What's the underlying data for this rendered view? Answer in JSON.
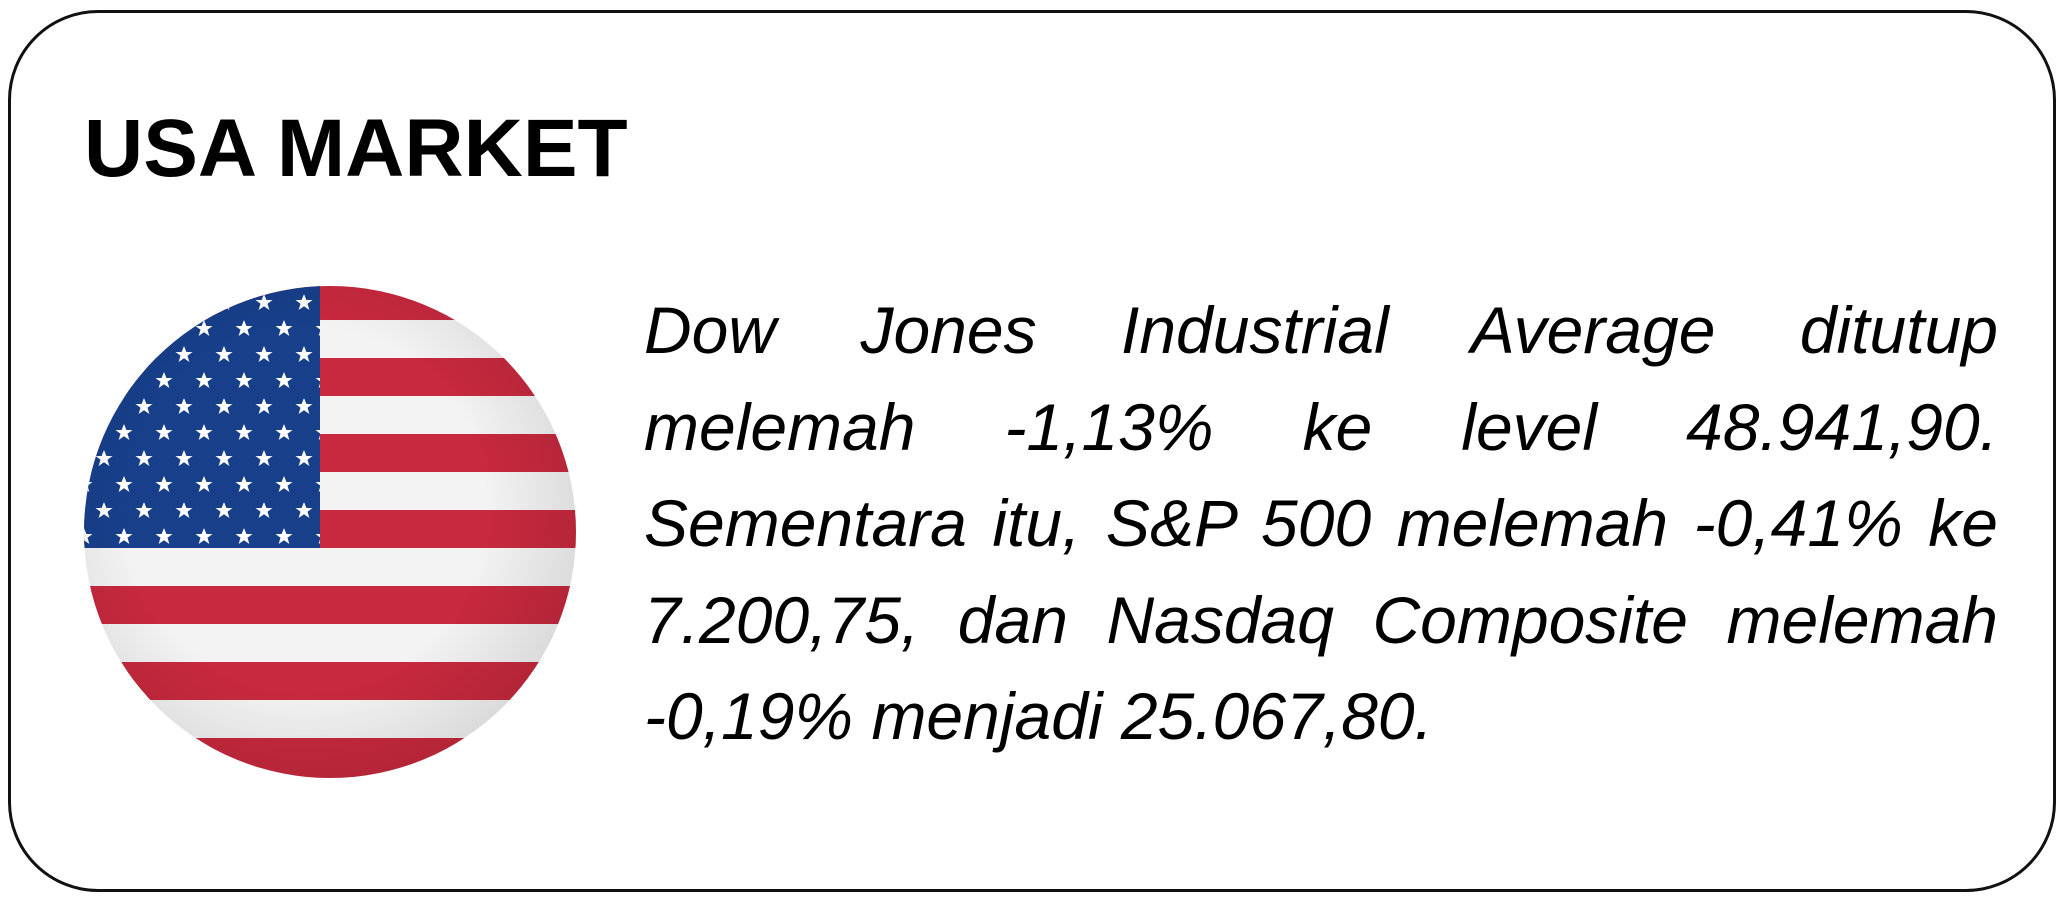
{
  "header": {
    "title": "USA MARKET"
  },
  "body": {
    "paragraph": "Dow Jones Industrial Average ditutup melemah -1,13% ke level 48.941,90. Sementara itu, S&P 500 melemah -0,41% ke 7.200,75, dan Nasdaq Composite melemah -0,19% menjadi 25.067,80."
  }
}
